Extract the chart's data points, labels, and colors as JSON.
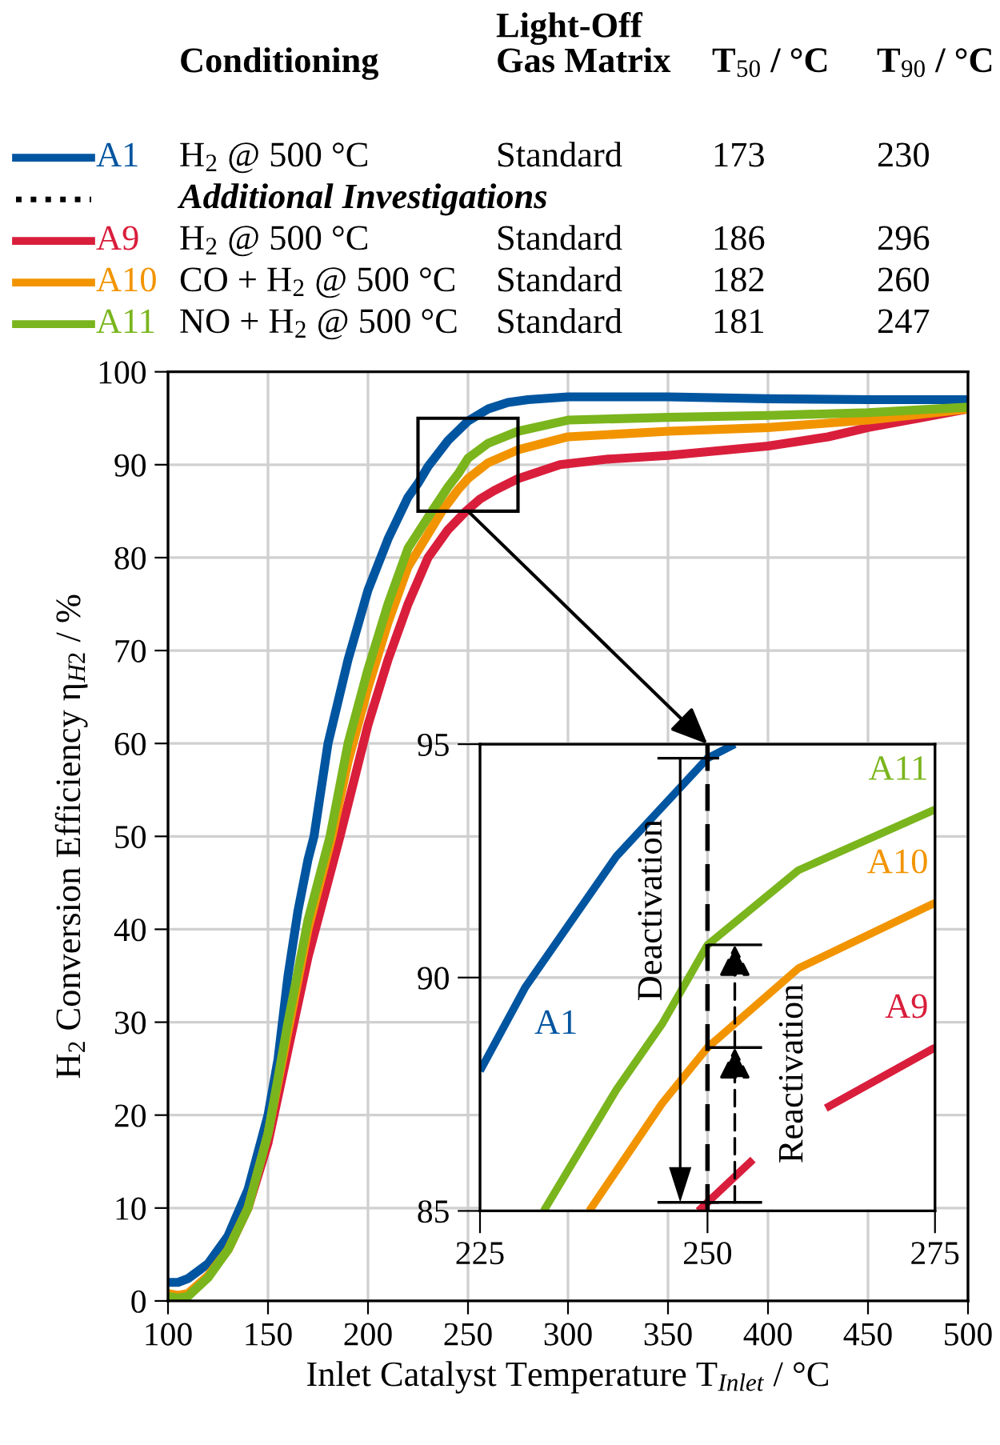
{
  "chart_data": [
    {
      "type": "line",
      "xlabel": "Inlet Catalyst Temperature T$_{Inlet}$ / °C",
      "ylabel": "H$_{2}$ Conversion Efficiency η$_{H2}$ / %",
      "xlim": [
        100,
        500
      ],
      "xticks": [
        100,
        150,
        200,
        250,
        300,
        350,
        400,
        450,
        500
      ],
      "ylim": [
        0,
        100
      ],
      "yticks": [
        0,
        10,
        20,
        30,
        40,
        50,
        60,
        70,
        80,
        90,
        100
      ],
      "grid": true,
      "legend": "top",
      "annotations": [
        "Conditioning",
        "Light-Off\nGas Matrix",
        "T$_{50}$ / °C",
        "T$_{90}$ / °C",
        "Additional Investigations",
        "H$_{2}$ @ 500 °C",
        "Standard",
        "173",
        "230",
        "H$_{2}$ @ 500 °C",
        "Standard",
        "186",
        "296",
        "CO + H$_{2}$ @ 500 °C",
        "Standard",
        "182",
        "260",
        "NO + H$_{2}$ @ 500 °C",
        "Standard",
        "181",
        "247"
      ],
      "series": [
        {
          "name": "A1",
          "color": "#0055a0",
          "x": [
            100,
            105,
            110,
            120,
            130,
            140,
            150,
            155,
            160,
            165,
            170,
            173,
            180,
            190,
            200,
            210,
            220,
            225,
            230,
            240,
            250,
            260,
            270,
            280,
            300,
            350,
            400,
            450,
            500
          ],
          "values": [
            2,
            2,
            2.4,
            4,
            7,
            12,
            20,
            26,
            35,
            42,
            47.5,
            50,
            60,
            69,
            76.5,
            82,
            86.5,
            88,
            89.8,
            92.6,
            94.7,
            96,
            96.7,
            97,
            97.3,
            97.3,
            97.1,
            97,
            97
          ]
        },
        {
          "name": "A9",
          "color": "#d91e3c",
          "x": [
            130,
            140,
            150,
            160,
            170,
            186,
            200,
            210,
            220,
            230,
            240,
            249,
            256,
            263,
            275,
            296,
            320,
            350,
            400,
            430,
            450,
            475,
            500
          ],
          "values": [
            5.5,
            10,
            17,
            27,
            37,
            50,
            62,
            69,
            75,
            80,
            83,
            85,
            86.3,
            87.2,
            88.5,
            90,
            90.6,
            91,
            92,
            93,
            94,
            95,
            96
          ]
        },
        {
          "name": "A10",
          "color": "#f29400",
          "x": [
            100,
            105,
            110,
            120,
            130,
            140,
            150,
            160,
            170,
            182,
            190,
            200,
            210,
            220,
            237,
            245,
            250,
            260,
            275,
            300,
            350,
            400,
            450,
            500
          ],
          "values": [
            0.8,
            0.6,
            0.8,
            2.7,
            5.5,
            10,
            18,
            29,
            40,
            50,
            58,
            66,
            73,
            79,
            85,
            87.3,
            88.5,
            90.2,
            91.6,
            93,
            93.6,
            94,
            94.8,
            96
          ]
        },
        {
          "name": "A11",
          "color": "#7ab51d",
          "x": [
            100,
            105,
            110,
            120,
            130,
            140,
            150,
            160,
            170,
            181,
            190,
            200,
            210,
            220,
            232,
            240,
            245,
            250,
            260,
            275,
            300,
            350,
            400,
            450,
            500
          ],
          "values": [
            0.5,
            0.3,
            0.5,
            2.5,
            5.5,
            10,
            18,
            30,
            41,
            50,
            60,
            68,
            75,
            81,
            85,
            87.6,
            89,
            90.7,
            92.3,
            93.6,
            94.8,
            95.1,
            95.3,
            95.6,
            96.2
          ]
        }
      ]
    },
    {
      "type": "line",
      "xlim": [
        225,
        275
      ],
      "xticks": [
        225,
        250,
        275
      ],
      "ylim": [
        85,
        95
      ],
      "yticks": [
        85,
        90,
        95
      ],
      "grid": true,
      "ref_lines": [
        {
          "axis": "x",
          "value": 250,
          "color": "#000000",
          "line_style": "dashed"
        }
      ],
      "annotations": [
        {
          "text": "Deactivation",
          "x": 250,
          "y": 94.7
        },
        {
          "text": "Reactivation",
          "x": 250,
          "y": 90.7
        }
      ],
      "series": [
        {
          "name": "A1",
          "color": "#0055a0",
          "x": [
            225,
            230,
            240,
            250,
            253
          ],
          "values": [
            88,
            89.8,
            92.6,
            94.7,
            95
          ]
        },
        {
          "name": "A9",
          "color": "#d91e3c",
          "x": [
            249,
            255,
            257,
            263,
            275
          ],
          "values": [
            85,
            86.1,
            null,
            87.2,
            88.5
          ]
        },
        {
          "name": "A10",
          "color": "#f29400",
          "x": [
            237,
            245,
            250,
            260,
            275
          ],
          "values": [
            85,
            87.3,
            88.5,
            90.2,
            91.6
          ]
        },
        {
          "name": "A11",
          "color": "#7ab51d",
          "x": [
            232,
            240,
            245,
            250,
            260,
            275
          ],
          "values": [
            85,
            87.6,
            89,
            90.7,
            92.3,
            93.6
          ]
        }
      ]
    }
  ]
}
